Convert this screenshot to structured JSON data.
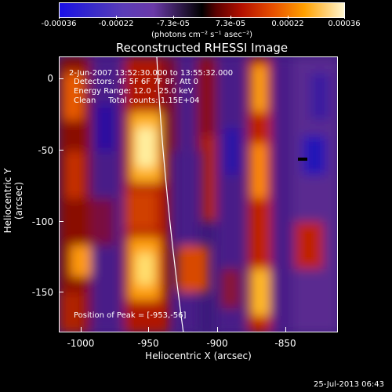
{
  "colorbar": {
    "ticks": [
      "-0.00036",
      "-0.00022",
      "-7.3e-05",
      "7.3e-05",
      "0.00022",
      "0.00036"
    ],
    "units": "(photons cm⁻² s⁻¹ asec⁻²)"
  },
  "title": "Reconstructed RHESSI Image",
  "info": {
    "time_range": "2-Jun-2007 13:52:30.000 to 13:55:32.000",
    "detectors": "Detectors: 4F 5F 6F 7F 8F, Att 0",
    "energy": "Energy Range: 12.0 - 25.0 keV",
    "clean": "Clean     Total counts: 1.15E+04",
    "peak": "Position of Peak = [-953,-56]"
  },
  "axes": {
    "xlabel": "Heliocentric X (arcsec)",
    "ylabel": "Heliocentric Y (arcsec)",
    "xticks": [
      "-1000",
      "-950",
      "-900",
      "-850"
    ],
    "yticks": [
      "0",
      "-50",
      "-100",
      "-150"
    ]
  },
  "timestamp": "25-Jul-2013 06:43"
}
